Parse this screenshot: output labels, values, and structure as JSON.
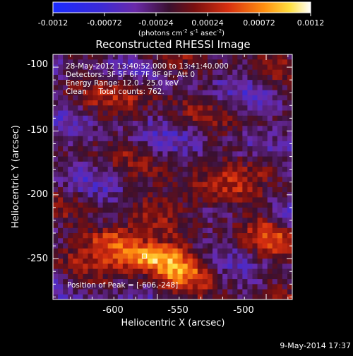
{
  "chart_data": {
    "type": "heatmap",
    "title": "Reconstructed RHESSI Image",
    "xlabel": "Heliocentric X (arcsec)",
    "ylabel": "Heliocentric Y (arcsec)",
    "xlim": [
      -648,
      -538
    ],
    "ylim": [
      -282,
      -90
    ],
    "x_ticks": [
      -600,
      -550,
      -500
    ],
    "y_ticks": [
      -100,
      -150,
      -200,
      -250
    ],
    "grid": false,
    "colorbar": {
      "min": -0.0012,
      "max": 0.0012,
      "tick_labels": [
        "-0.0012",
        "-0.00072",
        "-0.00024",
        "0.00024",
        "0.00072",
        "0.0012"
      ],
      "unit_label_parts": [
        "(photons cm",
        "-2",
        " s",
        "-1",
        " asec",
        "-2",
        ")"
      ]
    },
    "annotations": [
      "28-May-2012 13:40:52.000 to 13:41:40.000",
      "Detectors: 3F 5F 6F 7F 8F 9F, Att 0",
      "Energy Range: 12.0 - 25.0 keV",
      "Clean     Total counts: 762."
    ],
    "peak_label": "Position of Peak = [-606,-248]",
    "timestamp": "9-May-2014 17:37",
    "grid_size": [
      48,
      48
    ],
    "hotspots": [
      {
        "x": -606,
        "y": -248,
        "amp": 0.00115,
        "sx": 14,
        "sy": 7
      },
      {
        "x": -620,
        "y": -235,
        "amp": 0.0009,
        "sx": 10,
        "sy": 7
      },
      {
        "x": -590,
        "y": -260,
        "amp": 0.0007,
        "sx": 10,
        "sy": 8
      },
      {
        "x": -580,
        "y": -200,
        "amp": 0.0006,
        "sx": 14,
        "sy": 10
      },
      {
        "x": -610,
        "y": -120,
        "amp": 0.0004,
        "sx": 10,
        "sy": 9
      },
      {
        "x": -520,
        "y": -130,
        "amp": 0.00045,
        "sx": 9,
        "sy": 7
      },
      {
        "x": -545,
        "y": -175,
        "amp": 0.0005,
        "sx": 9,
        "sy": 8
      },
      {
        "x": -500,
        "y": -250,
        "amp": 0.0004,
        "sx": 10,
        "sy": 9
      },
      {
        "x": -545,
        "y": -230,
        "amp": 0.0005,
        "sx": 9,
        "sy": 10
      },
      {
        "x": -505,
        "y": -270,
        "amp": 0.0007,
        "sx": 9,
        "sy": 6
      }
    ],
    "coldspots": [
      {
        "x": -520,
        "y": -160,
        "amp": -0.0006,
        "sx": 14,
        "sy": 18
      },
      {
        "x": -535,
        "y": -220,
        "amp": -0.0004,
        "sx": 8,
        "sy": 8
      }
    ],
    "peak": {
      "x": -606,
      "y": -248
    }
  }
}
